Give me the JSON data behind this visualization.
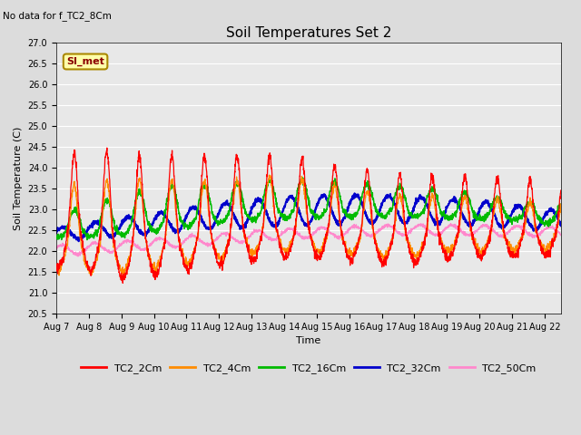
{
  "title": "Soil Temperatures Set 2",
  "subtitle": "No data for f_TC2_8Cm",
  "xlabel": "Time",
  "ylabel": "Soil Temperature (C)",
  "ylim": [
    20.5,
    27.0
  ],
  "colors": {
    "TC2_2Cm": "#FF0000",
    "TC2_4Cm": "#FF8C00",
    "TC2_16Cm": "#00BB00",
    "TC2_32Cm": "#0000CC",
    "TC2_50Cm": "#FF88CC"
  },
  "legend_labels": [
    "TC2_2Cm",
    "TC2_4Cm",
    "TC2_16Cm",
    "TC2_32Cm",
    "TC2_50Cm"
  ],
  "xtick_labels": [
    "Aug 7",
    "Aug 8",
    "Aug 9",
    "Aug 10",
    "Aug 11",
    "Aug 12",
    "Aug 13",
    "Aug 14",
    "Aug 15",
    "Aug 16",
    "Aug 17",
    "Aug 18",
    "Aug 19",
    "Aug 20",
    "Aug 21",
    "Aug 22"
  ],
  "annotation_text": "SI_met",
  "annotation_color": "#8B0000",
  "annotation_bg": "#FFFFAA",
  "fig_bg": "#DCDCDC",
  "plot_bg": "#E8E8E8"
}
